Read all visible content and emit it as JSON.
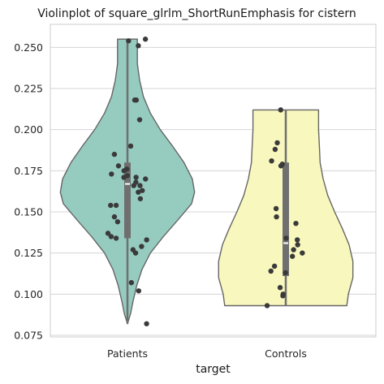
{
  "chart_data": {
    "type": "violin",
    "title": "Violinplot of square_glrlm_ShortRunEmphasis for cistern",
    "xlabel": "target",
    "ylabel": "",
    "categories": [
      "Patients",
      "Controls"
    ],
    "ylim": [
      0.074,
      0.264
    ],
    "yticks": [
      0.075,
      0.1,
      0.125,
      0.15,
      0.175,
      0.2,
      0.225,
      0.25
    ],
    "ytick_labels": [
      "0.075",
      "0.100",
      "0.125",
      "0.150",
      "0.175",
      "0.200",
      "0.225",
      "0.250"
    ],
    "grid": "horizontal",
    "colors": {
      "Patients": "#96cbc0",
      "Controls": "#f8f7bd",
      "outline": "#666666",
      "points": "#3a3a3a",
      "box": "#6f6f6f",
      "grid": "#d5d5d5",
      "median": "#ffffff"
    },
    "series": [
      {
        "name": "Patients",
        "min": 0.082,
        "q1": 0.134,
        "median": 0.167,
        "q3": 0.18,
        "max": 0.255,
        "points": [
          0.255,
          0.254,
          0.251,
          0.218,
          0.218,
          0.206,
          0.19,
          0.185,
          0.178,
          0.176,
          0.175,
          0.173,
          0.172,
          0.171,
          0.171,
          0.17,
          0.168,
          0.166,
          0.166,
          0.163,
          0.162,
          0.158,
          0.154,
          0.154,
          0.147,
          0.144,
          0.137,
          0.135,
          0.134,
          0.133,
          0.129,
          0.127,
          0.125,
          0.107,
          0.102,
          0.082
        ],
        "density": [
          [
            0.082,
            0.0
          ],
          [
            0.088,
            0.04
          ],
          [
            0.095,
            0.07
          ],
          [
            0.105,
            0.12
          ],
          [
            0.115,
            0.19
          ],
          [
            0.125,
            0.3
          ],
          [
            0.135,
            0.47
          ],
          [
            0.145,
            0.66
          ],
          [
            0.155,
            0.84
          ],
          [
            0.162,
            0.88
          ],
          [
            0.17,
            0.85
          ],
          [
            0.18,
            0.74
          ],
          [
            0.19,
            0.59
          ],
          [
            0.2,
            0.43
          ],
          [
            0.21,
            0.3
          ],
          [
            0.22,
            0.21
          ],
          [
            0.23,
            0.16
          ],
          [
            0.24,
            0.13
          ],
          [
            0.248,
            0.13
          ],
          [
            0.255,
            0.13
          ]
        ]
      },
      {
        "name": "Controls",
        "min": 0.093,
        "q1": 0.111,
        "median": 0.131,
        "q3": 0.18,
        "max": 0.212,
        "points": [
          0.212,
          0.192,
          0.188,
          0.181,
          0.179,
          0.178,
          0.152,
          0.147,
          0.143,
          0.134,
          0.133,
          0.13,
          0.127,
          0.125,
          0.123,
          0.117,
          0.114,
          0.113,
          0.104,
          0.1,
          0.099,
          0.093
        ],
        "density": [
          [
            0.093,
            0.8
          ],
          [
            0.1,
            0.82
          ],
          [
            0.11,
            0.88
          ],
          [
            0.12,
            0.88
          ],
          [
            0.13,
            0.83
          ],
          [
            0.14,
            0.74
          ],
          [
            0.15,
            0.64
          ],
          [
            0.16,
            0.55
          ],
          [
            0.17,
            0.49
          ],
          [
            0.18,
            0.45
          ],
          [
            0.19,
            0.44
          ],
          [
            0.2,
            0.43
          ],
          [
            0.212,
            0.43
          ]
        ]
      }
    ]
  }
}
